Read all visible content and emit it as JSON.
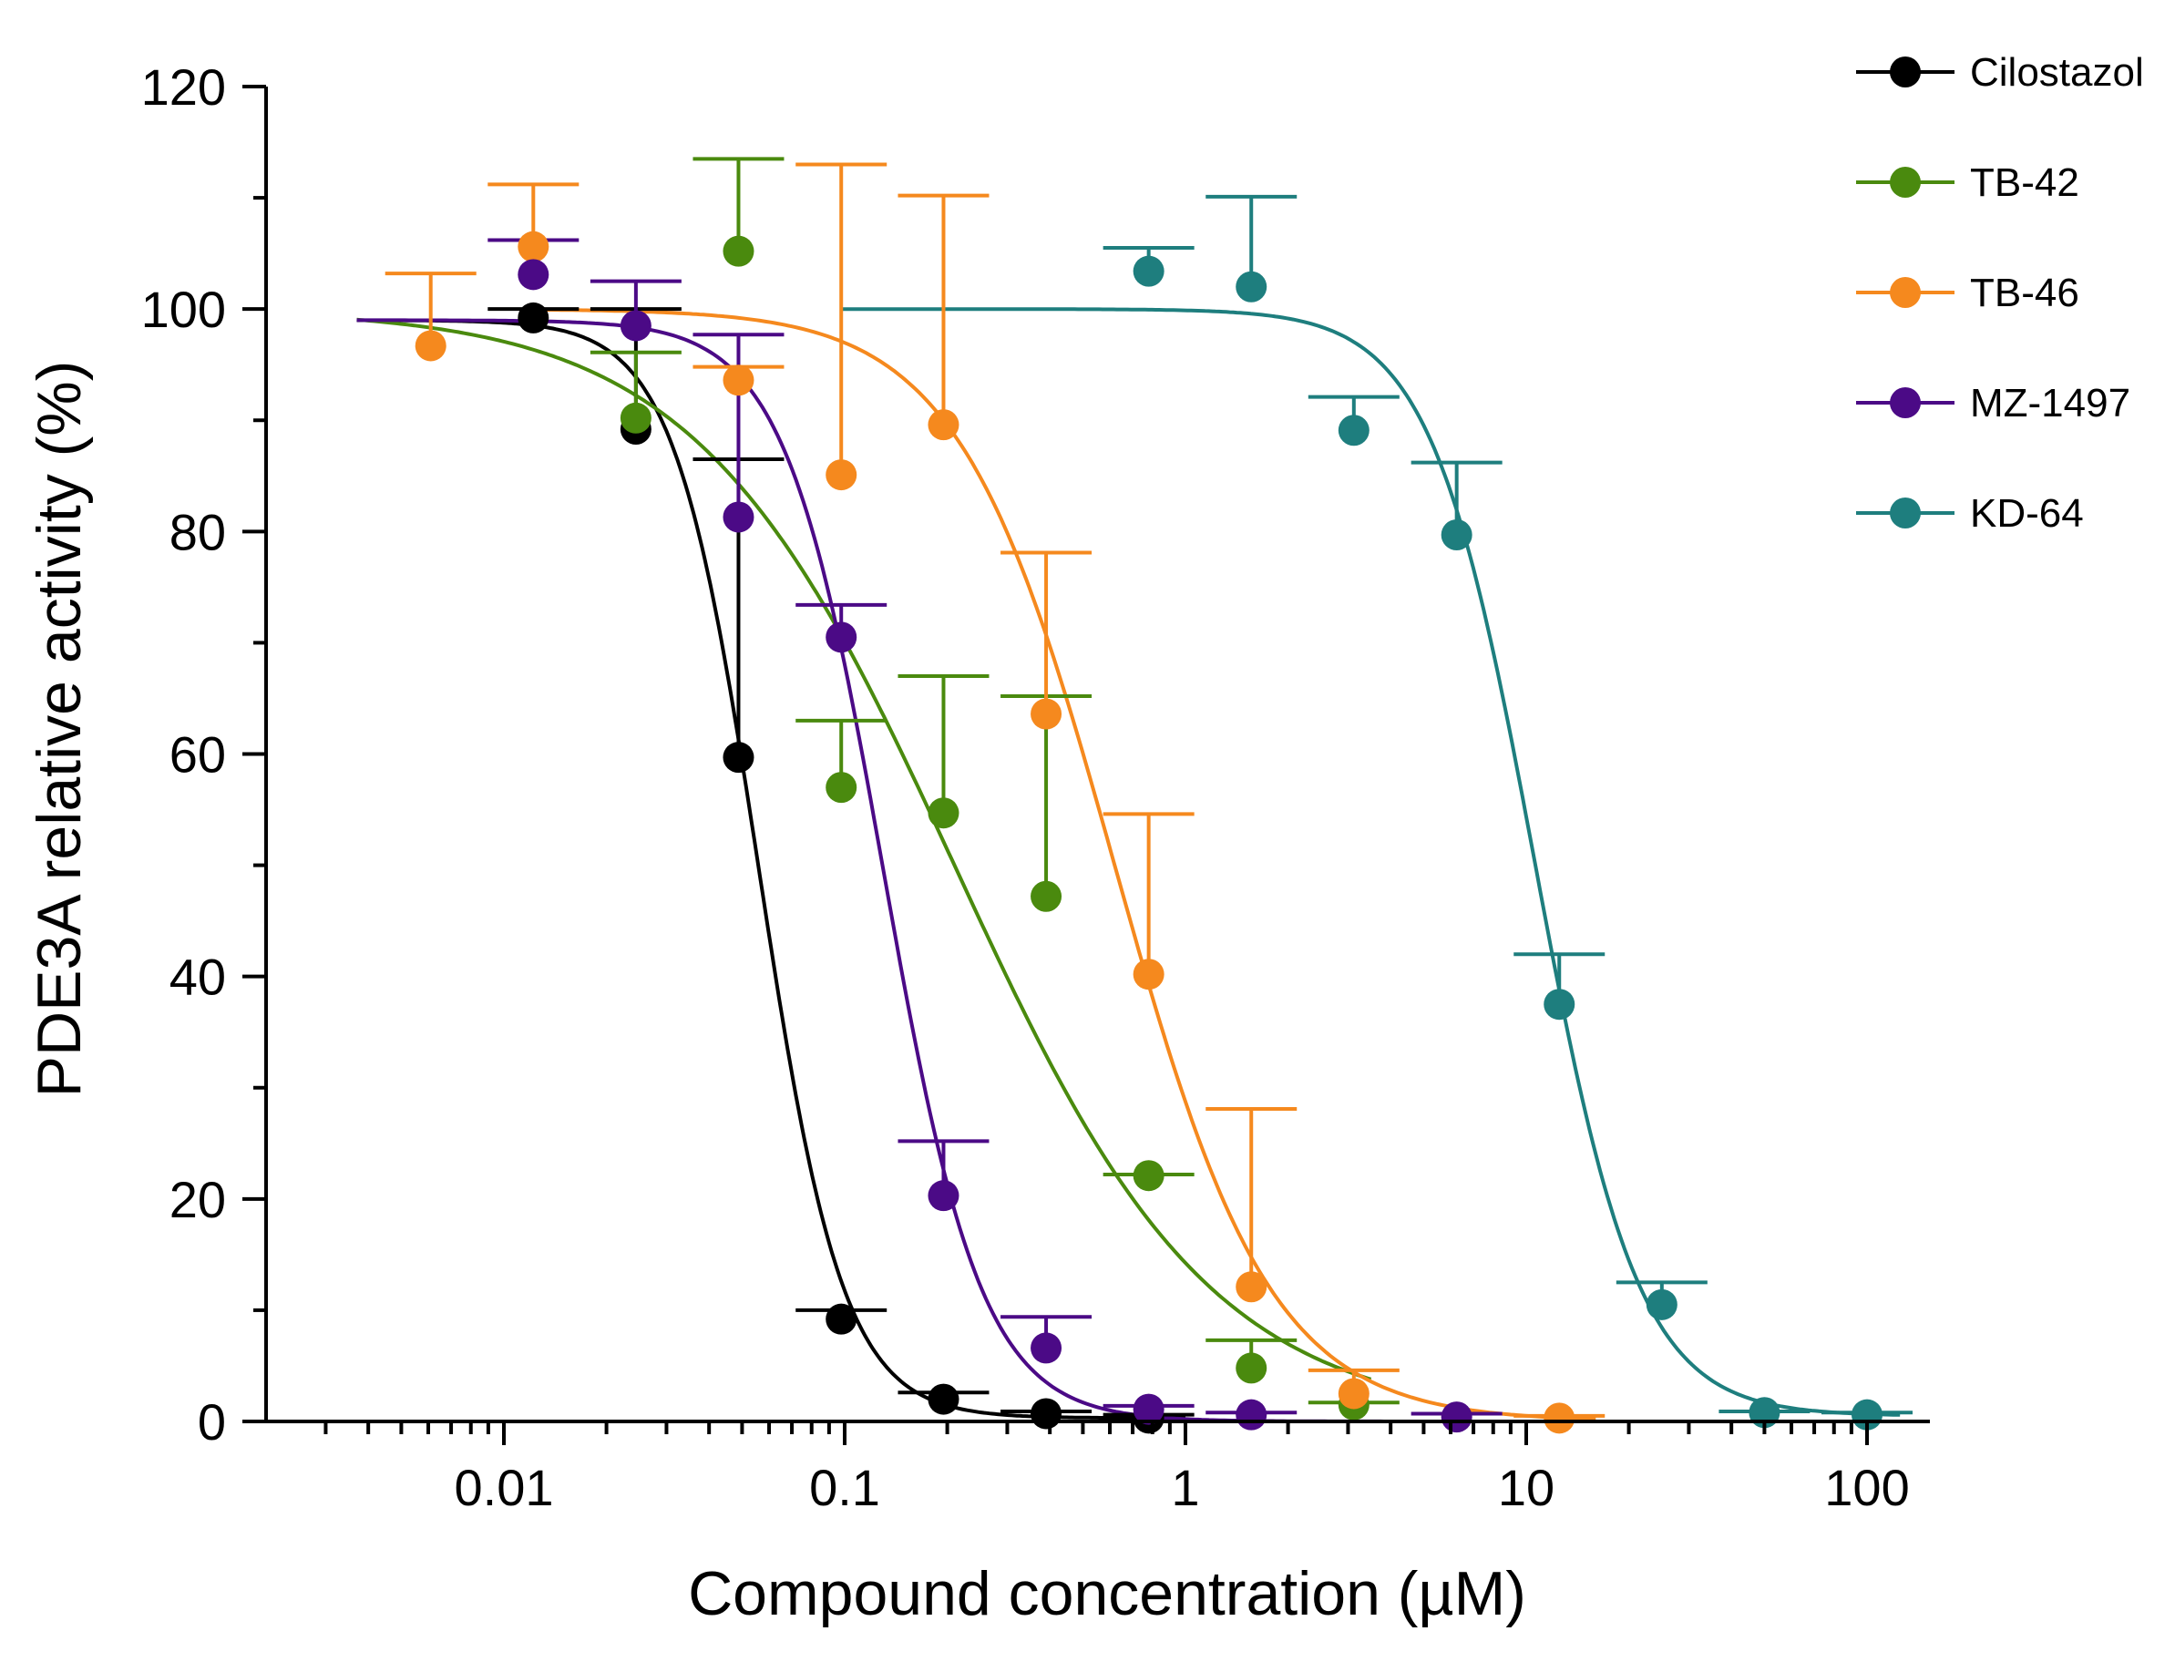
{
  "chart_data": {
    "type": "scatter",
    "xlabel": "Compound concentration (µM)",
    "ylabel": "PDE3A relative activity (%)",
    "x_scale": "log",
    "xlim": [
      0.0022,
      140
    ],
    "ylim": [
      0,
      120
    ],
    "x_ticks": [
      0.01,
      0.1,
      1,
      10,
      100
    ],
    "x_tick_labels": [
      "0.01",
      "0.1",
      "1",
      "10",
      "100"
    ],
    "y_ticks": [
      0,
      20,
      40,
      60,
      80,
      100,
      120
    ],
    "y_tick_labels": [
      "0",
      "20",
      "40",
      "60",
      "80",
      "100",
      "120"
    ],
    "legend_position": "top-right",
    "series": [
      {
        "name": "Cilostazol",
        "color": "#000000",
        "x": [
          0.0122,
          0.0244,
          0.0488,
          0.0977,
          0.195,
          0.39,
          0.78
        ],
        "y": [
          99.2,
          89.2,
          59.7,
          9.2,
          2.0,
          0.7,
          0.3
        ],
        "error_upper": [
          0.8,
          10.8,
          26.8,
          0.8,
          0.6,
          0.2,
          0.3
        ],
        "fit": {
          "top": 99,
          "bottom": 0.3,
          "ic50": 0.056,
          "hill": 3.5,
          "x_range": [
            0.0037,
            1.0
          ]
        }
      },
      {
        "name": "TB-42",
        "color": "#4a8a0e",
        "x": [
          0.0244,
          0.0488,
          0.0977,
          0.195,
          0.39,
          0.78,
          1.56,
          3.12
        ],
        "y": [
          90.2,
          105.2,
          57.0,
          54.7,
          47.2,
          22.1,
          4.8,
          1.5
        ],
        "error_upper": [
          5.9,
          8.3,
          6.0,
          12.3,
          18.0,
          0.1,
          2.5,
          0.2
        ],
        "fit": {
          "top": 100,
          "bottom": 0,
          "ic50": 0.21,
          "hill": 1.15,
          "x_range": [
            0.0037,
            3.5
          ]
        }
      },
      {
        "name": "TB-46",
        "color": "#f5891e",
        "x": [
          0.0061,
          0.0122,
          0.0488,
          0.0977,
          0.195,
          0.39,
          0.78,
          1.56,
          3.12,
          12.5
        ],
        "y": [
          96.7,
          105.6,
          93.6,
          85.1,
          89.6,
          63.6,
          40.2,
          12.1,
          2.5,
          0.3
        ],
        "error_upper": [
          6.5,
          5.6,
          1.2,
          27.9,
          20.6,
          14.5,
          14.4,
          16.0,
          2.1,
          0.2
        ],
        "fit": {
          "top": 100,
          "bottom": 0,
          "ic50": 0.62,
          "hill": 1.9,
          "x_range": [
            0.0122,
            16
          ]
        }
      },
      {
        "name": "MZ-1497",
        "color": "#4b0a86",
        "x": [
          0.0122,
          0.0244,
          0.0488,
          0.0977,
          0.195,
          0.39,
          0.78,
          1.56,
          6.25
        ],
        "y": [
          103.1,
          98.5,
          81.3,
          70.5,
          20.3,
          6.6,
          1.1,
          0.6,
          0.4
        ],
        "error_upper": [
          3.1,
          4.0,
          16.4,
          2.9,
          4.9,
          2.8,
          0.3,
          0.2,
          0.3
        ],
        "fit": {
          "top": 99,
          "bottom": 0,
          "ic50": 0.13,
          "hill": 3.0,
          "x_range": [
            0.0037,
            7.0
          ]
        }
      },
      {
        "name": "KD-64",
        "color": "#1e7e7e",
        "x": [
          0.78,
          1.56,
          3.12,
          6.25,
          12.5,
          25,
          50,
          100
        ],
        "y": [
          103.4,
          102.0,
          89.1,
          79.7,
          37.5,
          10.5,
          0.8,
          0.6
        ],
        "error_upper": [
          2.1,
          8.1,
          3.0,
          6.5,
          4.5,
          2.0,
          0.1,
          0.2
        ],
        "fit": {
          "top": 100,
          "bottom": 0.5,
          "ic50": 10.6,
          "hill": 2.85,
          "x_range": [
            0.098,
            125
          ]
        }
      }
    ]
  }
}
